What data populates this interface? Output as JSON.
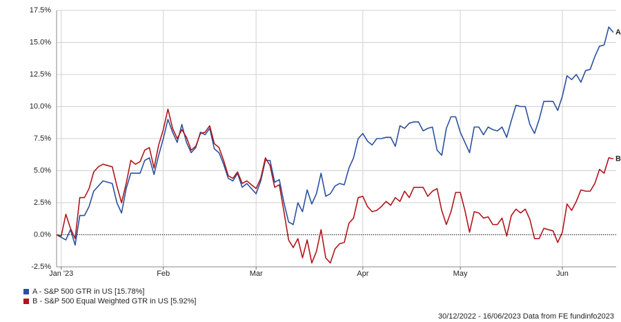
{
  "chart_data": {
    "type": "line",
    "categories": [
      null,
      "Jan '23",
      null,
      null,
      null,
      null,
      null,
      null,
      null,
      null,
      null,
      null,
      null,
      null,
      null,
      null,
      null,
      null,
      null,
      null,
      null,
      null,
      null,
      "Feb",
      null,
      null,
      null,
      null,
      null,
      null,
      null,
      null,
      null,
      null,
      null,
      null,
      null,
      null,
      null,
      null,
      null,
      null,
      null,
      "Mar",
      null,
      null,
      null,
      null,
      null,
      null,
      null,
      null,
      null,
      null,
      null,
      null,
      null,
      null,
      null,
      null,
      null,
      null,
      null,
      null,
      null,
      null,
      "Apr",
      null,
      null,
      null,
      null,
      null,
      null,
      null,
      null,
      null,
      null,
      null,
      null,
      null,
      null,
      null,
      null,
      null,
      null,
      null,
      null,
      "May",
      null,
      null,
      null,
      null,
      null,
      null,
      null,
      null,
      null,
      null,
      null,
      null,
      null,
      null,
      null,
      null,
      null,
      null,
      null,
      null,
      null,
      "Jun",
      null,
      null,
      null,
      null,
      null,
      null,
      null,
      null,
      null,
      null,
      null
    ],
    "series": [
      {
        "name": "A - S&P 500 GTR in US [15.78%]",
        "end_label": "A",
        "color": "#2a4f9e",
        "values": [
          0,
          -0.2,
          -0.4,
          0.4,
          -0.8,
          1.5,
          1.5,
          2.2,
          3.4,
          3.8,
          4.2,
          4.1,
          4.0,
          2.5,
          1.7,
          3.6,
          4.8,
          4.8,
          4.8,
          5.8,
          6.0,
          4.7,
          6.2,
          7.5,
          9.0,
          8.0,
          7.2,
          8.6,
          7.2,
          6.4,
          6.8,
          8.0,
          7.8,
          8.3,
          6.7,
          6.4,
          5.5,
          4.4,
          4.2,
          4.8,
          3.7,
          4.0,
          3.6,
          3.2,
          4.2,
          5.8,
          5.8,
          4.1,
          4.3,
          2.5,
          1.0,
          0.8,
          2.5,
          1.8,
          3.5,
          2.4,
          3.2,
          4.8,
          3.0,
          3.2,
          3.8,
          4.0,
          3.9,
          5.2,
          6.0,
          7.5,
          7.9,
          7.3,
          7.0,
          7.5,
          7.5,
          7.6,
          7.6,
          6.9,
          8.5,
          8.3,
          8.7,
          8.8,
          8.8,
          8.1,
          8.3,
          8.4,
          6.6,
          6.2,
          8.3,
          9.2,
          9.2,
          8.0,
          7.2,
          6.4,
          8.4,
          8.4,
          7.8,
          8.4,
          8.2,
          8.1,
          8.4,
          7.6,
          8.9,
          10.1,
          10.0,
          10.0,
          8.6,
          7.9,
          9.0,
          10.4,
          10.4,
          10.4,
          9.7,
          10.8,
          12.4,
          12.1,
          12.5,
          11.9,
          12.8,
          12.9,
          13.9,
          14.7,
          14.8,
          16.2,
          15.78
        ]
      },
      {
        "name": "B - S&P 500 Equal Weighted GTR in US [5.92%]",
        "end_label": "B",
        "color": "#b0141a",
        "values": [
          0,
          -0.1,
          1.6,
          0.5,
          -0.3,
          2.9,
          2.9,
          3.6,
          4.9,
          5.3,
          5.5,
          5.4,
          5.3,
          3.8,
          2.5,
          4.0,
          5.8,
          5.5,
          5.7,
          6.6,
          6.8,
          5.2,
          7.0,
          8.2,
          9.8,
          8.3,
          7.5,
          8.2,
          7.6,
          6.6,
          6.9,
          7.9,
          8.0,
          8.5,
          7.1,
          6.8,
          5.8,
          4.6,
          4.4,
          4.9,
          4.0,
          4.2,
          3.9,
          3.6,
          4.4,
          6.0,
          5.4,
          3.7,
          3.9,
          1.8,
          -0.4,
          -1.0,
          -0.3,
          -1.8,
          -0.4,
          -2.2,
          -1.3,
          0.4,
          -1.8,
          -2.2,
          -1.1,
          -0.7,
          -0.6,
          0.9,
          1.3,
          2.9,
          3.0,
          2.2,
          1.8,
          1.9,
          2.2,
          2.6,
          2.3,
          2.9,
          2.6,
          3.4,
          2.9,
          3.7,
          3.7,
          3.7,
          3.0,
          3.4,
          3.6,
          1.9,
          0.8,
          1.8,
          3.3,
          3.3,
          1.9,
          0.2,
          1.8,
          1.7,
          1.3,
          1.4,
          0.8,
          0.8,
          1.3,
          -0.1,
          1.5,
          2.0,
          1.7,
          2.0,
          1.2,
          -0.3,
          -0.3,
          0.5,
          0.4,
          0.3,
          -0.6,
          0.2,
          2.4,
          1.9,
          2.6,
          3.5,
          3.4,
          3.4,
          4.0,
          5.1,
          4.8,
          6.0,
          5.92
        ]
      }
    ],
    "ylim": [
      -2.5,
      17.5
    ],
    "yticks": [
      {
        "value": -2.5,
        "label": "-2.5%"
      },
      {
        "value": 0,
        "label": "0.0%"
      },
      {
        "value": 2.5,
        "label": "2.5%"
      },
      {
        "value": 5,
        "label": "5.0%"
      },
      {
        "value": 7.5,
        "label": "7.5%"
      },
      {
        "value": 10,
        "label": "10.0%"
      },
      {
        "value": 12.5,
        "label": "12.5%"
      },
      {
        "value": 15,
        "label": "15.0%"
      },
      {
        "value": 17.5,
        "label": "17.5%"
      }
    ],
    "grid": true,
    "footer": "30/12/2022 - 16/06/2023 Data from FE fundinfo2023"
  }
}
